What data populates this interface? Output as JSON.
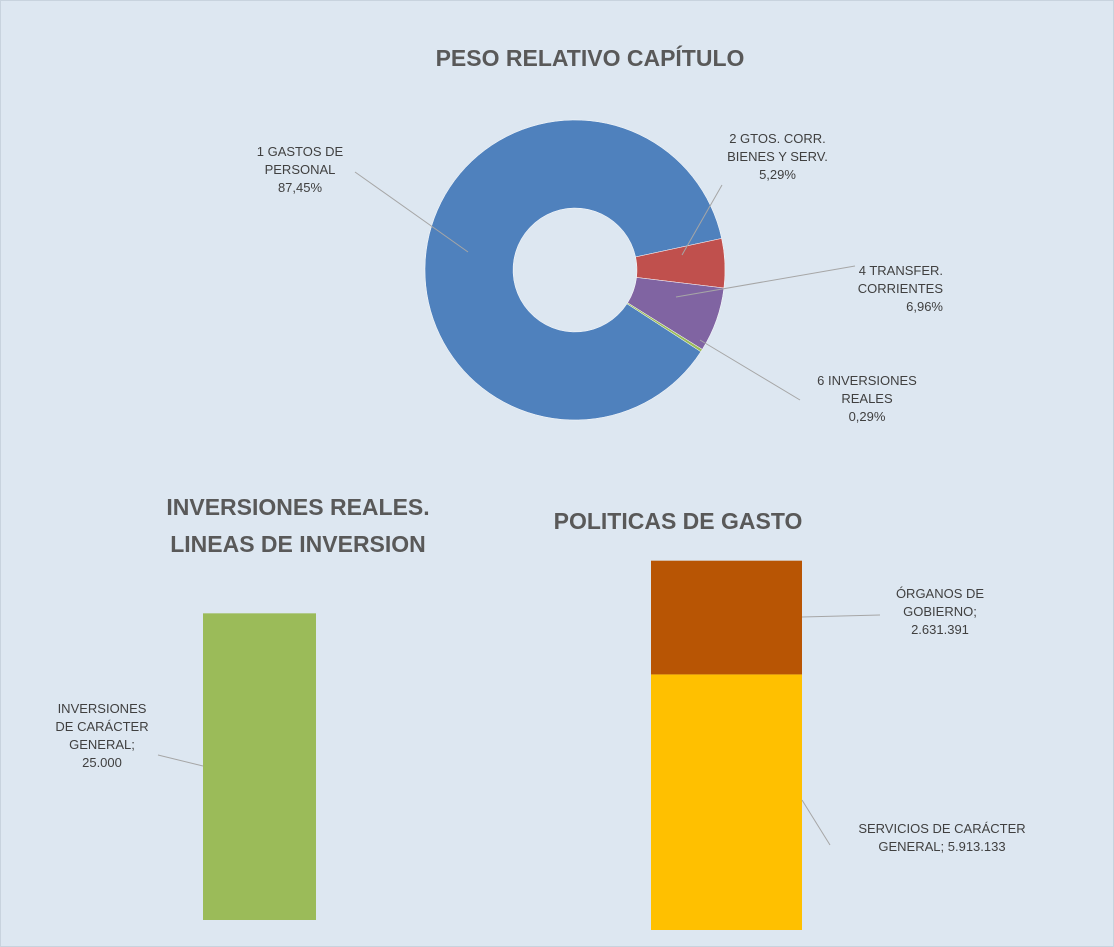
{
  "chart_data": [
    {
      "type": "donut",
      "title": "PESO RELATIVO CAPÍTULO",
      "categories": [
        "1 GASTOS DE PERSONAL",
        "2 GTOS. CORR. BIENES Y SERV.",
        "4 TRANSFER. CORRIENTES",
        "6 INVERSIONES REALES"
      ],
      "values": [
        87.45,
        5.29,
        6.96,
        0.29
      ],
      "value_labels": [
        "87,45%",
        "5,29%",
        "6,96%",
        "0,29%"
      ],
      "colors": [
        "#4f81bd",
        "#c0504d",
        "#8064a2",
        "#9bbb59"
      ]
    },
    {
      "type": "bar",
      "title": "INVERSIONES REALES. LINEAS DE INVERSION",
      "series": [
        {
          "color": "#9bbb59",
          "values": [
            25000
          ],
          "value_labels": [
            "INVERSIONES DE CARÁCTER GENERAL; 25.000"
          ]
        }
      ],
      "ylim": [
        0,
        30000
      ]
    },
    {
      "type": "stacked_bar",
      "title": "POLITICAS DE GASTO",
      "series": [
        {
          "name": "SERVICIOS DE CARÁCTER GENERAL",
          "color": "#ffc000",
          "values": [
            5913133
          ],
          "value_labels": [
            "SERVICIOS DE CARÁCTER GENERAL; 5.913.133"
          ]
        },
        {
          "name": "ÓRGANOS DE GOBIERNO",
          "color": "#b85504",
          "values": [
            2631391
          ],
          "value_labels": [
            "ÓRGANOS DE GOBIERNO; 2.631.391"
          ]
        }
      ],
      "ylim": [
        0,
        9000000
      ]
    }
  ]
}
